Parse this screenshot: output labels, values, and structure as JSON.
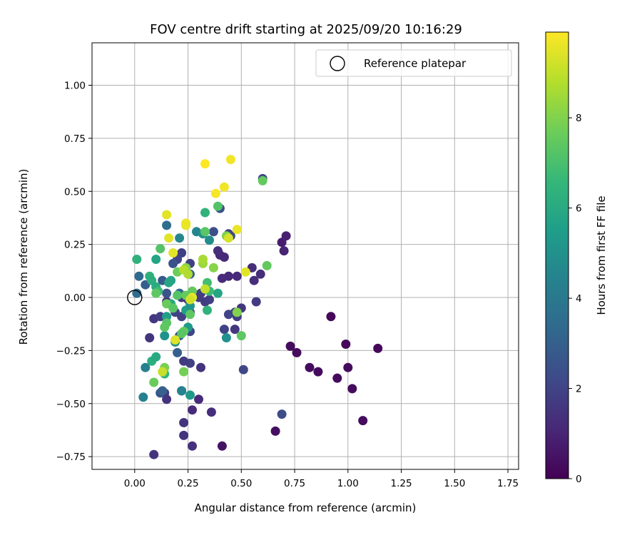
{
  "chart_data": {
    "type": "scatter",
    "title": "FOV centre drift starting at 2025/09/20 10:16:29",
    "xlabel": "Angular distance from reference (arcmin)",
    "ylabel": "Rotation from reference (arcmin)",
    "xlim": [
      -0.2,
      1.8
    ],
    "ylim": [
      -0.81,
      1.2
    ],
    "xticks": [
      0.0,
      0.25,
      0.5,
      0.75,
      1.0,
      1.25,
      1.5,
      1.75
    ],
    "xtick_labels": [
      "0.00",
      "0.25",
      "0.50",
      "0.75",
      "1.00",
      "1.25",
      "1.50",
      "1.75"
    ],
    "yticks": [
      -0.75,
      -0.5,
      -0.25,
      0.0,
      0.25,
      0.5,
      0.75,
      1.0
    ],
    "ytick_labels": [
      "−0.75",
      "−0.50",
      "−0.25",
      "0.00",
      "0.25",
      "0.50",
      "0.75",
      "1.00"
    ],
    "grid": true,
    "legend": {
      "position": "top-right",
      "entries": [
        "Reference platepar"
      ]
    },
    "reference_point": {
      "x": 0.0,
      "y": 0.0,
      "label": "Reference platepar"
    },
    "colorbar": {
      "label": "Hours from first FF file",
      "range": [
        0,
        9.9
      ],
      "ticks": [
        0,
        2,
        4,
        6,
        8
      ],
      "tick_labels": [
        "0",
        "2",
        "4",
        "6",
        "8"
      ],
      "colormap": "viridis"
    },
    "points": [
      [
        0.92,
        -0.09,
        0.2
      ],
      [
        0.99,
        -0.22,
        0.2
      ],
      [
        1.14,
        -0.24,
        0.2
      ],
      [
        0.73,
        -0.23,
        0.3
      ],
      [
        0.76,
        -0.26,
        0.3
      ],
      [
        0.82,
        -0.33,
        0.3
      ],
      [
        0.86,
        -0.35,
        0.3
      ],
      [
        0.95,
        -0.38,
        0.3
      ],
      [
        1.0,
        -0.33,
        0.3
      ],
      [
        1.02,
        -0.43,
        0.3
      ],
      [
        1.07,
        -0.58,
        0.3
      ],
      [
        0.66,
        -0.63,
        0.4
      ],
      [
        0.41,
        -0.7,
        0.5
      ],
      [
        0.69,
        0.26,
        0.8
      ],
      [
        0.71,
        0.29,
        0.9
      ],
      [
        0.7,
        0.22,
        1.0
      ],
      [
        0.59,
        0.11,
        1.3
      ],
      [
        0.56,
        0.08,
        1.3
      ],
      [
        0.55,
        0.14,
        1.3
      ],
      [
        0.48,
        0.1,
        1.2
      ],
      [
        0.44,
        0.1,
        1.1
      ],
      [
        0.41,
        0.09,
        1.2
      ],
      [
        0.42,
        0.19,
        1.2
      ],
      [
        0.4,
        0.2,
        1.1
      ],
      [
        0.39,
        0.22,
        1.3
      ],
      [
        0.44,
        0.3,
        1.8
      ],
      [
        0.45,
        0.29,
        2.1
      ],
      [
        0.4,
        0.42,
        2.4
      ],
      [
        0.37,
        0.31,
        2.4
      ],
      [
        0.6,
        0.56,
        2.1
      ],
      [
        0.57,
        -0.02,
        1.7
      ],
      [
        0.5,
        -0.05,
        1.6
      ],
      [
        0.47,
        -0.07,
        1.9
      ],
      [
        0.44,
        -0.08,
        2.0
      ],
      [
        0.48,
        -0.09,
        1.8
      ],
      [
        0.47,
        -0.15,
        1.6
      ],
      [
        0.42,
        -0.15,
        2.0
      ],
      [
        0.51,
        -0.34,
        2.1
      ],
      [
        0.69,
        -0.55,
        2.3
      ],
      [
        0.36,
        -0.54,
        1.3
      ],
      [
        0.27,
        -0.53,
        1.2
      ],
      [
        0.3,
        -0.48,
        1.2
      ],
      [
        0.22,
        -0.44,
        1.5
      ],
      [
        0.23,
        -0.59,
        1.5
      ],
      [
        0.23,
        -0.65,
        1.5
      ],
      [
        0.27,
        -0.7,
        1.4
      ],
      [
        0.09,
        -0.74,
        1.5
      ],
      [
        0.26,
        -0.31,
        1.9
      ],
      [
        0.31,
        -0.33,
        1.5
      ],
      [
        0.23,
        -0.3,
        1.7
      ],
      [
        0.14,
        -0.45,
        1.7
      ],
      [
        0.15,
        -0.48,
        1.5
      ],
      [
        0.12,
        -0.45,
        2.6
      ],
      [
        0.13,
        -0.44,
        3.0
      ],
      [
        0.07,
        -0.19,
        1.5
      ],
      [
        0.09,
        -0.1,
        1.6
      ],
      [
        0.12,
        -0.09,
        1.8
      ],
      [
        0.19,
        -0.07,
        2.0
      ],
      [
        0.22,
        -0.09,
        1.9
      ],
      [
        0.26,
        -0.07,
        1.8
      ],
      [
        0.26,
        -0.16,
        2.1
      ],
      [
        0.25,
        -0.15,
        2.2
      ],
      [
        0.21,
        -0.18,
        2.6
      ],
      [
        0.2,
        -0.26,
        3.0
      ],
      [
        0.15,
        -0.02,
        1.3
      ],
      [
        0.22,
        0.0,
        1.6
      ],
      [
        0.25,
        -0.01,
        1.8
      ],
      [
        0.3,
        0.0,
        1.8
      ],
      [
        0.33,
        -0.02,
        1.7
      ],
      [
        0.35,
        -0.01,
        1.8
      ],
      [
        0.31,
        0.02,
        1.8
      ],
      [
        0.22,
        0.21,
        1.8
      ],
      [
        0.26,
        0.16,
        1.9
      ],
      [
        0.2,
        0.18,
        2.0
      ],
      [
        0.18,
        0.16,
        2.5
      ],
      [
        0.13,
        0.08,
        2.8
      ],
      [
        0.15,
        0.02,
        2.6
      ],
      [
        0.05,
        0.06,
        3.0
      ],
      [
        0.02,
        0.1,
        3.4
      ],
      [
        0.01,
        0.02,
        3.5
      ],
      [
        0.15,
        0.34,
        3.5
      ],
      [
        0.29,
        0.31,
        4.5
      ],
      [
        0.21,
        0.28,
        4.6
      ],
      [
        0.32,
        0.3,
        5.0
      ],
      [
        0.35,
        0.27,
        4.8
      ],
      [
        0.26,
        0.11,
        3.1
      ],
      [
        0.21,
        0.02,
        3.2
      ],
      [
        0.05,
        -0.33,
        4.3
      ],
      [
        0.04,
        -0.47,
        4.3
      ],
      [
        0.22,
        -0.44,
        4.4
      ],
      [
        0.26,
        -0.46,
        5.3
      ],
      [
        0.17,
        -0.03,
        5.9
      ],
      [
        0.24,
        -0.06,
        5.5
      ],
      [
        0.26,
        -0.04,
        5.2
      ],
      [
        0.15,
        -0.09,
        5.5
      ],
      [
        0.14,
        -0.18,
        5.0
      ],
      [
        0.19,
        -0.21,
        5.0
      ],
      [
        0.25,
        -0.14,
        5.4
      ],
      [
        0.43,
        -0.19,
        5.0
      ],
      [
        0.34,
        -0.06,
        6.4
      ],
      [
        0.35,
        0.03,
        6.8
      ],
      [
        0.39,
        0.02,
        5.8
      ],
      [
        0.34,
        0.07,
        6.9
      ],
      [
        0.33,
        0.4,
        6.4
      ],
      [
        0.39,
        0.43,
        7.2
      ],
      [
        0.1,
        0.18,
        5.8
      ],
      [
        0.01,
        0.18,
        6.4
      ],
      [
        0.07,
        0.1,
        6.3
      ],
      [
        0.08,
        0.08,
        6.2
      ],
      [
        0.1,
        0.05,
        6.1
      ],
      [
        0.11,
        0.03,
        6.7
      ],
      [
        0.16,
        0.07,
        5.8
      ],
      [
        0.17,
        0.08,
        5.8
      ],
      [
        0.12,
        0.23,
        7.2
      ],
      [
        0.08,
        -0.3,
        6.2
      ],
      [
        0.1,
        -0.28,
        6.0
      ],
      [
        0.14,
        -0.36,
        6.6
      ],
      [
        0.09,
        -0.4,
        7.6
      ],
      [
        0.14,
        -0.33,
        7.9
      ],
      [
        0.23,
        -0.35,
        7.8
      ],
      [
        0.23,
        -0.16,
        7.5
      ],
      [
        0.22,
        -0.17,
        7.3
      ],
      [
        0.15,
        -0.12,
        7.3
      ],
      [
        0.14,
        -0.14,
        7.4
      ],
      [
        0.15,
        -0.03,
        7.6
      ],
      [
        0.18,
        -0.05,
        7.3
      ],
      [
        0.2,
        0.01,
        7.2
      ],
      [
        0.1,
        0.02,
        7.4
      ],
      [
        0.2,
        0.12,
        7.7
      ],
      [
        0.24,
        0.14,
        8.1
      ],
      [
        0.37,
        0.14,
        8.1
      ],
      [
        0.32,
        0.16,
        8.4
      ],
      [
        0.32,
        0.18,
        8.6
      ],
      [
        0.24,
        0.01,
        7.5
      ],
      [
        0.27,
        0.03,
        7.5
      ],
      [
        0.26,
        -0.08,
        7.4
      ],
      [
        0.48,
        -0.07,
        8.0
      ],
      [
        0.5,
        -0.18,
        7.4
      ],
      [
        0.62,
        0.15,
        7.5
      ],
      [
        0.6,
        0.55,
        7.5
      ],
      [
        0.43,
        0.29,
        8.0
      ],
      [
        0.33,
        0.31,
        7.3
      ],
      [
        0.23,
        0.13,
        8.8
      ],
      [
        0.25,
        0.11,
        8.7
      ],
      [
        0.27,
        0.0,
        9.4
      ],
      [
        0.33,
        0.04,
        9.0
      ],
      [
        0.52,
        0.12,
        9.5
      ],
      [
        0.44,
        0.28,
        9.3
      ],
      [
        0.48,
        0.32,
        9.6
      ],
      [
        0.42,
        0.52,
        9.7
      ],
      [
        0.38,
        0.49,
        9.8
      ],
      [
        0.33,
        0.63,
        9.9
      ],
      [
        0.45,
        0.65,
        9.7
      ],
      [
        0.24,
        0.35,
        9.7
      ],
      [
        0.24,
        0.34,
        9.6
      ],
      [
        0.15,
        0.39,
        9.5
      ],
      [
        0.16,
        0.28,
        9.5
      ],
      [
        0.18,
        0.21,
        9.5
      ],
      [
        0.19,
        -0.2,
        9.4
      ],
      [
        0.27,
        0.0,
        9.6
      ],
      [
        0.26,
        -0.01,
        9.2
      ],
      [
        0.13,
        -0.35,
        9.1
      ]
    ]
  }
}
